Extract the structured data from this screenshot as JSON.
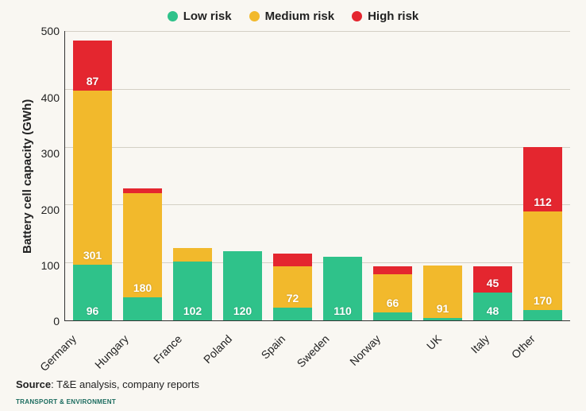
{
  "chart": {
    "type": "stacked-bar",
    "background_color": "#f9f7f2",
    "grid_color": "#d4d0c5",
    "axis_color": "#333333",
    "ylabel": "Battery cell capacity (GWh)",
    "ylabel_fontsize": 15,
    "ylim": [
      0,
      500
    ],
    "ytick_step": 100,
    "yticks": [
      "500",
      "400",
      "300",
      "200",
      "100",
      "0"
    ],
    "legend": [
      {
        "label": "Low risk",
        "color": "#2fc28a"
      },
      {
        "label": "Medium risk",
        "color": "#f2b92c"
      },
      {
        "label": "High risk",
        "color": "#e4262f"
      }
    ],
    "categories": [
      "Germany",
      "Hungary",
      "France",
      "Poland",
      "Spain",
      "Sweden",
      "Norway",
      "UK",
      "Italy",
      "Other"
    ],
    "series": {
      "low": [
        96,
        40,
        102,
        120,
        22,
        110,
        14,
        4,
        48,
        18
      ],
      "medium": [
        301,
        180,
        23,
        0,
        72,
        0,
        66,
        91,
        0,
        170
      ],
      "high": [
        87,
        8,
        0,
        0,
        22,
        0,
        14,
        0,
        45,
        112
      ]
    },
    "bar_labels": [
      {
        "low": "96",
        "medium": "301",
        "high": "87"
      },
      {
        "medium": "180"
      },
      {
        "low": "102"
      },
      {
        "low": "120"
      },
      {
        "medium": "72"
      },
      {
        "low": "110"
      },
      {
        "medium": "66"
      },
      {
        "medium": "91"
      },
      {
        "low": "48",
        "high": "45"
      },
      {
        "medium": "170",
        "high": "112"
      }
    ]
  },
  "source": {
    "prefix": "Source",
    "text": ": T&E analysis, company reports"
  },
  "footer": {
    "logo_text": "TRANSPORT & ENVIRONMENT"
  }
}
